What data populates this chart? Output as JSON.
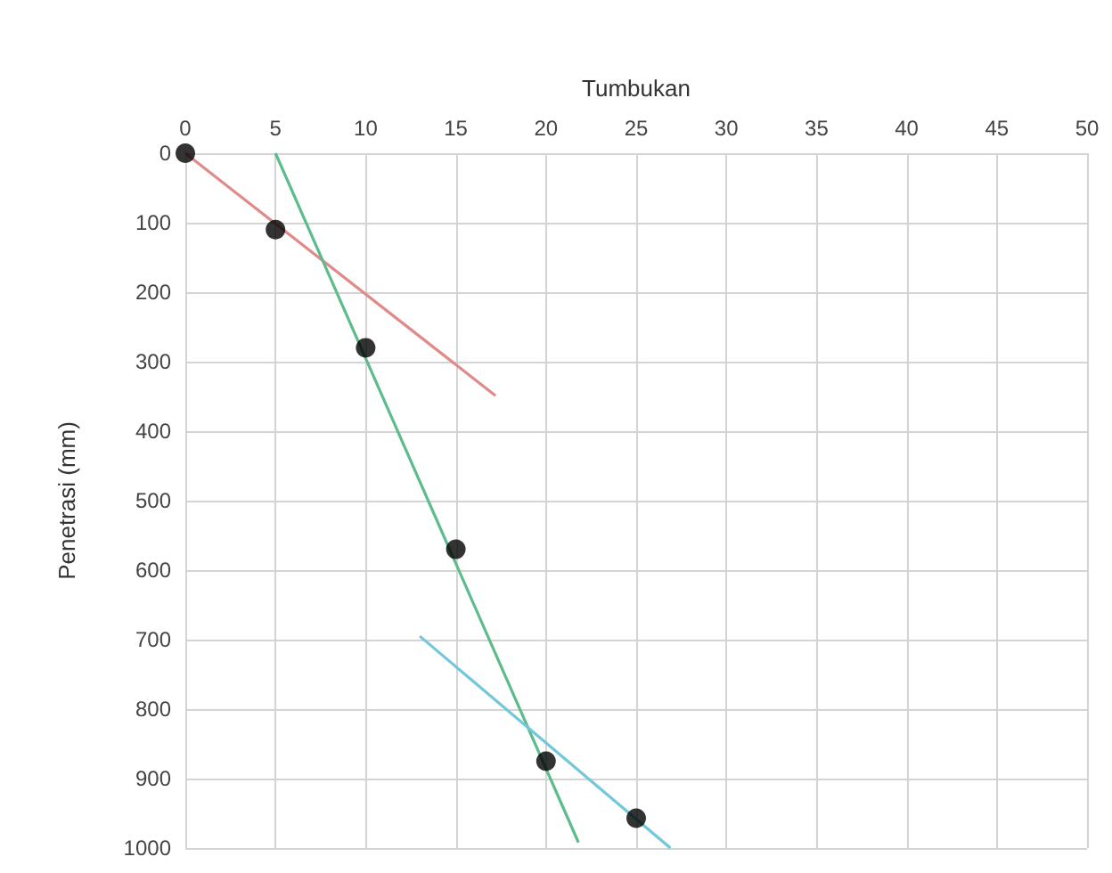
{
  "chart_data": {
    "type": "scatter",
    "xlabel": "Tumbukan",
    "ylabel": "Penetrasi (mm)",
    "xlim": [
      0,
      50
    ],
    "xticks": [
      0,
      5,
      10,
      15,
      20,
      25,
      30,
      35,
      40,
      45,
      50
    ],
    "ylim": [
      1000,
      0
    ],
    "yticks": [
      0,
      100,
      200,
      300,
      400,
      500,
      600,
      700,
      800,
      900,
      1000
    ],
    "grid": true,
    "series": [
      {
        "marker": "circle",
        "color": "#000000",
        "x": [
          0,
          5,
          10,
          15,
          20,
          25
        ],
        "values": [
          0,
          110,
          280,
          570,
          875,
          957
        ]
      },
      {
        "type": "line",
        "marker": "none",
        "color": "#e08a8a",
        "x": [
          0,
          17.2
        ],
        "values": [
          0,
          349
        ]
      },
      {
        "type": "line",
        "marker": "none",
        "color": "#5dbb8c",
        "x": [
          5,
          21.8
        ],
        "values": [
          0,
          992
        ]
      },
      {
        "type": "line",
        "marker": "none",
        "color": "#72c7da",
        "x": [
          13,
          26.9
        ],
        "values": [
          695,
          1000
        ]
      }
    ]
  }
}
